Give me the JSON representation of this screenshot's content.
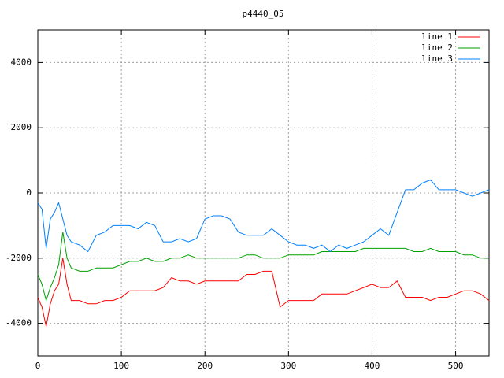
{
  "chart_data": {
    "type": "line",
    "title": "p4440_05",
    "x": [
      0,
      5,
      10,
      15,
      20,
      25,
      30,
      35,
      40,
      50,
      60,
      70,
      80,
      90,
      100,
      110,
      120,
      130,
      140,
      150,
      160,
      170,
      180,
      190,
      200,
      210,
      220,
      230,
      240,
      250,
      260,
      270,
      280,
      290,
      300,
      310,
      320,
      330,
      340,
      350,
      360,
      370,
      380,
      390,
      400,
      410,
      420,
      430,
      440,
      450,
      460,
      470,
      480,
      490,
      500,
      510,
      520,
      530,
      540
    ],
    "series": [
      {
        "name": "line 1",
        "color": "#ff0000",
        "values": [
          -3200,
          -3500,
          -4100,
          -3400,
          -3000,
          -2800,
          -2000,
          -2800,
          -3300,
          -3300,
          -3400,
          -3400,
          -3300,
          -3300,
          -3200,
          -3000,
          -3000,
          -3000,
          -3000,
          -2900,
          -2600,
          -2700,
          -2700,
          -2800,
          -2700,
          -2700,
          -2700,
          -2700,
          -2700,
          -2500,
          -2500,
          -2400,
          -2400,
          -3500,
          -3300,
          -3300,
          -3300,
          -3300,
          -3100,
          -3100,
          -3100,
          -3100,
          -3000,
          -2900,
          -2800,
          -2900,
          -2900,
          -2700,
          -3200,
          -3200,
          -3200,
          -3300,
          -3200,
          -3200,
          -3100,
          -3000,
          -3000,
          -3100,
          -3300
        ]
      },
      {
        "name": "line 2",
        "color": "#00a000",
        "values": [
          -2500,
          -2800,
          -3300,
          -2900,
          -2600,
          -2200,
          -1200,
          -2000,
          -2300,
          -2400,
          -2400,
          -2300,
          -2300,
          -2300,
          -2200,
          -2100,
          -2100,
          -2000,
          -2100,
          -2100,
          -2000,
          -2000,
          -1900,
          -2000,
          -2000,
          -2000,
          -2000,
          -2000,
          -2000,
          -1900,
          -1900,
          -2000,
          -2000,
          -2000,
          -1900,
          -1900,
          -1900,
          -1900,
          -1800,
          -1800,
          -1800,
          -1800,
          -1800,
          -1700,
          -1700,
          -1700,
          -1700,
          -1700,
          -1700,
          -1800,
          -1800,
          -1700,
          -1800,
          -1800,
          -1800,
          -1900,
          -1900,
          -2000,
          -2000
        ]
      },
      {
        "name": "line 3",
        "color": "#0080ff",
        "values": [
          -300,
          -500,
          -1700,
          -800,
          -600,
          -300,
          -800,
          -1300,
          -1500,
          -1600,
          -1800,
          -1300,
          -1200,
          -1000,
          -1000,
          -1000,
          -1100,
          -900,
          -1000,
          -1500,
          -1500,
          -1400,
          -1500,
          -1400,
          -800,
          -700,
          -700,
          -800,
          -1200,
          -1300,
          -1300,
          -1300,
          -1100,
          -1300,
          -1500,
          -1600,
          -1600,
          -1700,
          -1600,
          -1800,
          -1600,
          -1700,
          -1600,
          -1500,
          -1300,
          -1100,
          -1300,
          -600,
          100,
          100,
          300,
          400,
          100,
          100,
          100,
          0,
          -100,
          0,
          100
        ]
      }
    ],
    "xlim": [
      0,
      540
    ],
    "xticks": [
      0,
      100,
      200,
      300,
      400,
      500
    ],
    "ylim": [
      -5000,
      5000
    ],
    "yticks": [
      -4000,
      -2000,
      0,
      2000,
      4000
    ],
    "grid": true,
    "legend": "upper right"
  }
}
